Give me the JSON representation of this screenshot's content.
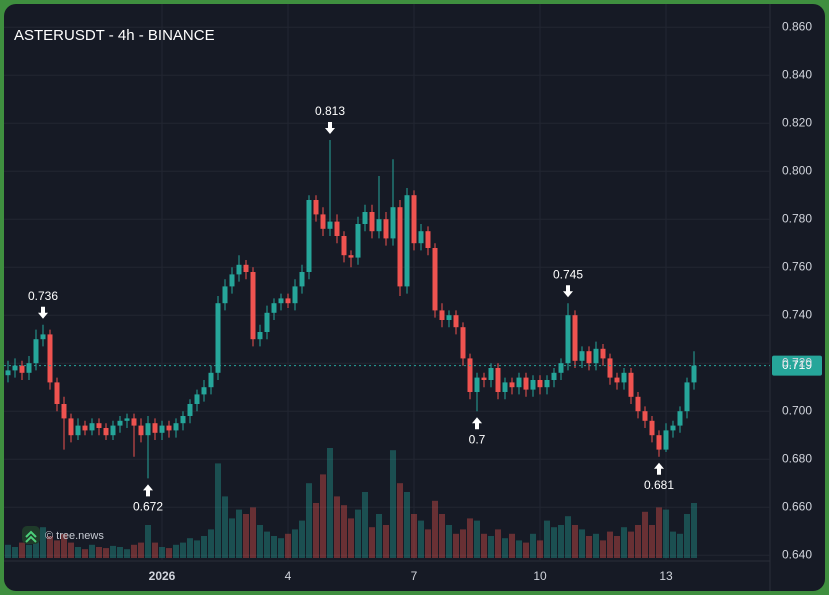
{
  "chart_data": {
    "type": "candlestick",
    "title": "ASTERUSDT - 4h - BINANCE",
    "watermark": "© tree.news",
    "categories": [
      null,
      null,
      null,
      null,
      null,
      null,
      null,
      null,
      null,
      null,
      null,
      null,
      null,
      null,
      null,
      null,
      null,
      null,
      null,
      null,
      null,
      null,
      "2026",
      null,
      null,
      null,
      null,
      null,
      null,
      null,
      null,
      null,
      null,
      null,
      null,
      null,
      null,
      null,
      null,
      null,
      "4",
      null,
      null,
      null,
      null,
      null,
      null,
      null,
      null,
      null,
      null,
      null,
      null,
      null,
      null,
      null,
      null,
      null,
      "7",
      null,
      null,
      null,
      null,
      null,
      null,
      null,
      null,
      null,
      null,
      null,
      null,
      null,
      null,
      null,
      null,
      null,
      "10",
      null,
      null,
      null,
      null,
      null,
      null,
      null,
      null,
      null,
      null,
      null,
      null,
      null,
      null,
      null,
      null,
      null,
      "13",
      null,
      null,
      null,
      null
    ],
    "open": [
      0.715,
      0.717,
      0.719,
      0.716,
      0.72,
      0.73,
      0.732,
      0.712,
      0.703,
      0.697,
      0.69,
      0.694,
      0.692,
      0.695,
      0.693,
      0.69,
      0.694,
      0.696,
      0.697,
      0.694,
      0.69,
      0.695,
      0.691,
      0.694,
      0.692,
      0.695,
      0.698,
      0.703,
      0.707,
      0.71,
      0.716,
      0.745,
      0.752,
      0.757,
      0.761,
      0.758,
      0.73,
      0.733,
      0.741,
      0.745,
      0.747,
      0.745,
      0.752,
      0.758,
      0.788,
      0.782,
      0.776,
      0.779,
      0.773,
      0.765,
      0.764,
      0.778,
      0.783,
      0.775,
      0.78,
      0.772,
      0.785,
      0.752,
      0.79,
      0.77,
      0.775,
      0.768,
      0.742,
      0.738,
      0.74,
      0.735,
      0.722,
      0.708,
      0.714,
      0.713,
      0.718,
      0.708,
      0.712,
      0.71,
      0.714,
      0.709,
      0.713,
      0.71,
      0.713,
      0.716,
      0.72,
      0.74,
      0.721,
      0.725,
      0.72,
      0.726,
      0.722,
      0.714,
      0.712,
      0.716,
      0.706,
      0.7,
      0.696,
      0.69,
      0.684,
      0.692,
      0.694,
      0.7,
      0.712
    ],
    "high": [
      0.721,
      0.722,
      0.721,
      0.723,
      0.734,
      0.736,
      0.734,
      0.714,
      0.706,
      0.699,
      0.697,
      0.696,
      0.697,
      0.697,
      0.695,
      0.696,
      0.698,
      0.699,
      0.699,
      0.697,
      0.698,
      0.697,
      0.696,
      0.696,
      0.697,
      0.7,
      0.705,
      0.709,
      0.713,
      0.719,
      0.748,
      0.755,
      0.76,
      0.765,
      0.763,
      0.76,
      0.736,
      0.744,
      0.747,
      0.749,
      0.749,
      0.755,
      0.761,
      0.79,
      0.79,
      0.785,
      0.813,
      0.782,
      0.775,
      0.767,
      0.781,
      0.786,
      0.786,
      0.798,
      0.783,
      0.805,
      0.788,
      0.793,
      0.792,
      0.778,
      0.777,
      0.77,
      0.745,
      0.742,
      0.742,
      0.737,
      0.724,
      0.716,
      0.716,
      0.72,
      0.72,
      0.714,
      0.714,
      0.716,
      0.716,
      0.715,
      0.715,
      0.715,
      0.718,
      0.722,
      0.745,
      0.742,
      0.727,
      0.727,
      0.729,
      0.728,
      0.724,
      0.716,
      0.718,
      0.718,
      0.708,
      0.702,
      0.698,
      0.692,
      0.695,
      0.696,
      0.702,
      0.714,
      0.725
    ],
    "low": [
      0.712,
      0.714,
      0.713,
      0.713,
      0.717,
      0.727,
      0.709,
      0.7,
      0.684,
      0.687,
      0.688,
      0.69,
      0.69,
      0.69,
      0.688,
      0.688,
      0.691,
      0.693,
      0.681,
      0.687,
      0.672,
      0.688,
      0.688,
      0.689,
      0.689,
      0.692,
      0.695,
      0.7,
      0.704,
      0.707,
      0.713,
      0.742,
      0.749,
      0.754,
      0.755,
      0.727,
      0.727,
      0.73,
      0.738,
      0.742,
      0.743,
      0.742,
      0.749,
      0.755,
      0.779,
      0.773,
      0.773,
      0.77,
      0.762,
      0.76,
      0.761,
      0.775,
      0.772,
      0.772,
      0.769,
      0.769,
      0.748,
      0.749,
      0.767,
      0.767,
      0.765,
      0.739,
      0.735,
      0.735,
      0.732,
      0.719,
      0.705,
      0.7,
      0.71,
      0.71,
      0.705,
      0.705,
      0.707,
      0.707,
      0.706,
      0.706,
      0.707,
      0.707,
      0.71,
      0.713,
      0.717,
      0.718,
      0.718,
      0.717,
      0.717,
      0.719,
      0.711,
      0.709,
      0.709,
      0.703,
      0.697,
      0.693,
      0.687,
      0.681,
      0.683,
      0.689,
      0.691,
      0.697,
      0.709
    ],
    "close": [
      0.717,
      0.719,
      0.716,
      0.72,
      0.73,
      0.732,
      0.712,
      0.703,
      0.697,
      0.69,
      0.694,
      0.692,
      0.695,
      0.693,
      0.69,
      0.694,
      0.696,
      0.697,
      0.694,
      0.69,
      0.695,
      0.691,
      0.694,
      0.692,
      0.695,
      0.698,
      0.703,
      0.707,
      0.71,
      0.716,
      0.745,
      0.752,
      0.757,
      0.761,
      0.758,
      0.73,
      0.733,
      0.741,
      0.745,
      0.747,
      0.745,
      0.752,
      0.758,
      0.788,
      0.782,
      0.776,
      0.779,
      0.773,
      0.765,
      0.764,
      0.778,
      0.783,
      0.775,
      0.78,
      0.772,
      0.785,
      0.752,
      0.79,
      0.77,
      0.775,
      0.768,
      0.742,
      0.738,
      0.74,
      0.735,
      0.722,
      0.708,
      0.714,
      0.713,
      0.718,
      0.708,
      0.712,
      0.71,
      0.714,
      0.709,
      0.713,
      0.71,
      0.713,
      0.716,
      0.72,
      0.74,
      0.721,
      0.725,
      0.72,
      0.726,
      0.722,
      0.714,
      0.712,
      0.716,
      0.706,
      0.7,
      0.696,
      0.69,
      0.684,
      0.692,
      0.694,
      0.7,
      0.712,
      0.719
    ],
    "volume": [
      12,
      10,
      14,
      12,
      22,
      28,
      20,
      16,
      22,
      14,
      10,
      8,
      12,
      10,
      9,
      11,
      10,
      8,
      12,
      14,
      30,
      14,
      10,
      9,
      12,
      14,
      18,
      16,
      20,
      26,
      86,
      56,
      36,
      44,
      40,
      46,
      30,
      24,
      20,
      18,
      22,
      26,
      34,
      68,
      50,
      76,
      100,
      56,
      48,
      36,
      44,
      60,
      28,
      40,
      30,
      98,
      68,
      60,
      40,
      34,
      26,
      52,
      40,
      30,
      22,
      26,
      36,
      34,
      22,
      20,
      26,
      18,
      22,
      16,
      14,
      22,
      16,
      34,
      28,
      30,
      38,
      30,
      26,
      20,
      22,
      16,
      24,
      20,
      28,
      24,
      30,
      42,
      30,
      46,
      44,
      24,
      22,
      40,
      50
    ],
    "up_color": "#26a69a",
    "down_color": "#ef5350",
    "last_price": 0.719,
    "annotations": [
      {
        "at": 5,
        "extreme": "high"
      },
      {
        "at": 20,
        "extreme": "low"
      },
      {
        "at": 46,
        "extreme": "high"
      },
      {
        "at": 67,
        "extreme": "low"
      },
      {
        "at": 80,
        "extreme": "high"
      },
      {
        "at": 93,
        "extreme": "low"
      }
    ],
    "ylim": [
      0.638,
      0.868
    ],
    "yticks": [
      {
        "value": 0.64,
        "label": "0.640"
      },
      {
        "value": 0.66,
        "label": "0.660"
      },
      {
        "value": 0.68,
        "label": "0.680"
      },
      {
        "value": 0.7,
        "label": "0.700"
      },
      {
        "value": 0.72,
        "label": "0.720"
      },
      {
        "value": 0.74,
        "label": "0.740"
      },
      {
        "value": 0.76,
        "label": "0.760"
      },
      {
        "value": 0.78,
        "label": "0.780"
      },
      {
        "value": 0.8,
        "label": "0.800"
      },
      {
        "value": 0.82,
        "label": "0.820"
      },
      {
        "value": 0.84,
        "label": "0.840"
      },
      {
        "value": 0.86,
        "label": "0.860"
      }
    ],
    "grid": true
  }
}
